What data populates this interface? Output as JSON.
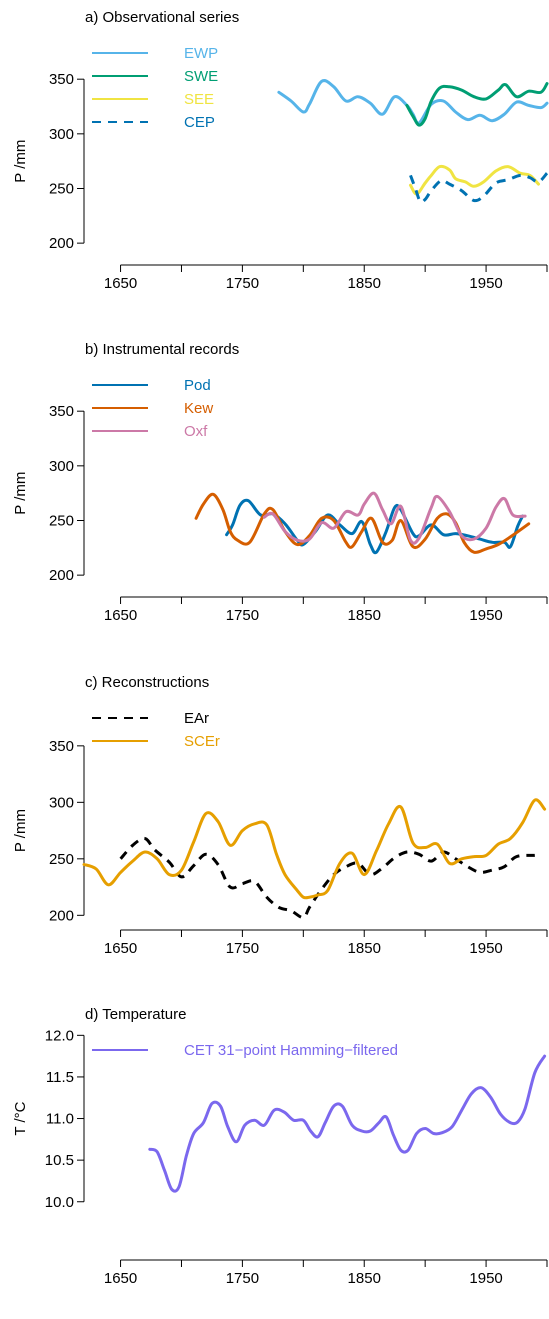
{
  "chart_data": [
    {
      "type": "line",
      "title": "a) Observational series",
      "ylabel": "P /mm",
      "xlim": [
        1620,
        2000
      ],
      "ylim": [
        180,
        395
      ],
      "xticks": [
        1650,
        1750,
        1850,
        1950
      ],
      "yticks": [
        200,
        250,
        300,
        350
      ],
      "legend_position": "top-left",
      "series": [
        {
          "name": "EWP",
          "color": "#56B4E9",
          "dash": false,
          "x": [
            1780,
            1790,
            1800,
            1805,
            1815,
            1825,
            1835,
            1845,
            1855,
            1865,
            1875,
            1885,
            1890,
            1895,
            1905,
            1915,
            1925,
            1935,
            1945,
            1955,
            1965,
            1975,
            1985,
            1995,
            2000
          ],
          "y": [
            338,
            330,
            320,
            327,
            348,
            343,
            330,
            334,
            328,
            318,
            334,
            326,
            318,
            310,
            327,
            330,
            320,
            313,
            317,
            312,
            318,
            329,
            326,
            324,
            328
          ]
        },
        {
          "name": "SWE",
          "color": "#009E73",
          "dash": false,
          "x": [
            1885,
            1890,
            1895,
            1900,
            1905,
            1912,
            1920,
            1930,
            1940,
            1950,
            1960,
            1966,
            1975,
            1985,
            1995,
            2000
          ],
          "y": [
            326,
            316,
            308,
            314,
            330,
            342,
            343,
            340,
            334,
            332,
            340,
            345,
            334,
            339,
            338,
            346
          ]
        },
        {
          "name": "SEE",
          "color": "#F0E442",
          "dash": false,
          "x": [
            1888,
            1893,
            1900,
            1905,
            1912,
            1920,
            1925,
            1933,
            1940,
            1948,
            1958,
            1968,
            1978,
            1986,
            1993
          ],
          "y": [
            253,
            245,
            255,
            262,
            270,
            267,
            259,
            256,
            252,
            256,
            266,
            270,
            264,
            262,
            254
          ]
        },
        {
          "name": "CEP",
          "color": "#0072B2",
          "dash": true,
          "x": [
            1888,
            1892,
            1896,
            1900,
            1905,
            1913,
            1920,
            1930,
            1940,
            1948,
            1958,
            1968,
            1978,
            1986,
            1993,
            2000
          ],
          "y": [
            262,
            250,
            238,
            240,
            248,
            257,
            254,
            248,
            239,
            243,
            255,
            258,
            262,
            260,
            256,
            264
          ]
        }
      ]
    },
    {
      "type": "line",
      "title": "b) Instrumental records",
      "ylabel": "P /mm",
      "xlim": [
        1620,
        2000
      ],
      "ylim": [
        180,
        395
      ],
      "xticks": [
        1650,
        1750,
        1850,
        1950
      ],
      "yticks": [
        200,
        250,
        300,
        350
      ],
      "legend_position": "top-left",
      "series": [
        {
          "name": "Pod",
          "color": "#0072B2",
          "dash": false,
          "x": [
            1737,
            1742,
            1748,
            1755,
            1765,
            1775,
            1785,
            1795,
            1800,
            1810,
            1820,
            1830,
            1840,
            1848,
            1855,
            1860,
            1868,
            1875,
            1880,
            1890,
            1895,
            1905,
            1915,
            1925,
            1935,
            1945,
            1955,
            1965,
            1970,
            1976,
            1980
          ],
          "y": [
            237,
            246,
            264,
            268,
            255,
            256,
            247,
            232,
            228,
            240,
            255,
            246,
            238,
            249,
            228,
            221,
            240,
            262,
            260,
            238,
            236,
            246,
            237,
            238,
            236,
            233,
            230,
            230,
            226,
            245,
            254
          ]
        },
        {
          "name": "Kew",
          "color": "#D55E00",
          "dash": false,
          "x": [
            1712,
            1718,
            1726,
            1734,
            1740,
            1746,
            1756,
            1768,
            1775,
            1785,
            1795,
            1805,
            1815,
            1825,
            1835,
            1840,
            1848,
            1856,
            1865,
            1873,
            1880,
            1890,
            1900,
            1910,
            1918,
            1925,
            1932,
            1940,
            1950,
            1960,
            1970,
            1985
          ],
          "y": [
            252,
            265,
            274,
            260,
            240,
            232,
            230,
            256,
            260,
            240,
            228,
            236,
            252,
            250,
            230,
            226,
            240,
            252,
            230,
            232,
            250,
            226,
            233,
            252,
            256,
            248,
            230,
            221,
            224,
            228,
            235,
            247
          ]
        },
        {
          "name": "Oxf",
          "color": "#CC79A7",
          "dash": false,
          "x": [
            1768,
            1775,
            1785,
            1795,
            1805,
            1815,
            1825,
            1835,
            1845,
            1850,
            1858,
            1865,
            1872,
            1880,
            1888,
            1895,
            1905,
            1910,
            1920,
            1930,
            1940,
            1950,
            1958,
            1965,
            1972,
            1982
          ],
          "y": [
            253,
            256,
            240,
            232,
            233,
            248,
            243,
            258,
            255,
            265,
            275,
            260,
            247,
            263,
            232,
            234,
            262,
            272,
            258,
            236,
            233,
            243,
            262,
            270,
            255,
            254
          ]
        }
      ]
    },
    {
      "type": "line",
      "title": "c) Reconstructions",
      "ylabel": "P /mm",
      "xlim": [
        1620,
        2000
      ],
      "ylim": [
        187,
        395
      ],
      "xticks": [
        1650,
        1750,
        1850,
        1950
      ],
      "yticks": [
        200,
        250,
        300,
        350
      ],
      "legend_position": "top-left",
      "series": [
        {
          "name": "EAr",
          "color": "#000000",
          "dash": true,
          "x": [
            1650,
            1660,
            1670,
            1678,
            1690,
            1700,
            1710,
            1720,
            1730,
            1740,
            1750,
            1760,
            1770,
            1780,
            1790,
            1800,
            1805,
            1815,
            1825,
            1835,
            1845,
            1855,
            1865,
            1875,
            1885,
            1895,
            1905,
            1915,
            1925,
            1935,
            1945,
            1955,
            1965,
            1975,
            1990
          ],
          "y": [
            250,
            262,
            268,
            258,
            247,
            234,
            244,
            254,
            245,
            225,
            228,
            230,
            216,
            207,
            204,
            198,
            207,
            223,
            236,
            243,
            246,
            236,
            242,
            251,
            256,
            254,
            248,
            256,
            250,
            243,
            238,
            240,
            243,
            252,
            253
          ]
        },
        {
          "name": "SCEr",
          "color": "#E69F00",
          "dash": false,
          "x": [
            1620,
            1630,
            1640,
            1650,
            1660,
            1670,
            1680,
            1690,
            1700,
            1710,
            1720,
            1730,
            1740,
            1750,
            1760,
            1770,
            1778,
            1785,
            1795,
            1800,
            1805,
            1812,
            1820,
            1830,
            1840,
            1850,
            1860,
            1870,
            1880,
            1890,
            1900,
            1910,
            1920,
            1930,
            1940,
            1950,
            1960,
            1970,
            1980,
            1990,
            1998
          ],
          "y": [
            245,
            241,
            227,
            238,
            248,
            256,
            250,
            236,
            240,
            265,
            290,
            283,
            262,
            275,
            281,
            280,
            254,
            236,
            222,
            216,
            216,
            218,
            222,
            246,
            255,
            236,
            257,
            281,
            296,
            264,
            260,
            263,
            246,
            250,
            252,
            253,
            263,
            268,
            282,
            302,
            294
          ]
        }
      ]
    },
    {
      "type": "line",
      "title": "d) Temperature",
      "ylabel": "T /°C",
      "xlim": [
        1620,
        2000
      ],
      "ylim": [
        9.3,
        12.1
      ],
      "xticks": [
        1650,
        1750,
        1850,
        1950
      ],
      "yticks": [
        "10.0",
        "10.5",
        "11.0",
        "11.5",
        "12.0"
      ],
      "legend_position": "top-left",
      "series": [
        {
          "name": "CET 31−point Hamming−filtered",
          "color": "#7B68EE",
          "dash": false,
          "x": [
            1674,
            1680,
            1686,
            1692,
            1698,
            1704,
            1710,
            1718,
            1725,
            1732,
            1738,
            1745,
            1752,
            1760,
            1768,
            1776,
            1784,
            1792,
            1800,
            1806,
            1812,
            1818,
            1825,
            1832,
            1840,
            1848,
            1855,
            1862,
            1868,
            1874,
            1880,
            1886,
            1893,
            1900,
            1907,
            1914,
            1922,
            1930,
            1938,
            1946,
            1954,
            1962,
            1970,
            1976,
            1982,
            1990,
            1998
          ],
          "y": [
            10.63,
            10.6,
            10.38,
            10.15,
            10.18,
            10.55,
            10.82,
            10.95,
            11.18,
            11.15,
            10.9,
            10.72,
            10.92,
            10.98,
            10.92,
            11.1,
            11.08,
            10.98,
            10.98,
            10.85,
            10.78,
            10.95,
            11.15,
            11.15,
            10.92,
            10.85,
            10.85,
            10.95,
            11.02,
            10.8,
            10.62,
            10.62,
            10.82,
            10.88,
            10.82,
            10.83,
            10.9,
            11.1,
            11.3,
            11.37,
            11.25,
            11.05,
            10.95,
            10.96,
            11.12,
            11.55,
            11.75
          ]
        }
      ]
    }
  ]
}
